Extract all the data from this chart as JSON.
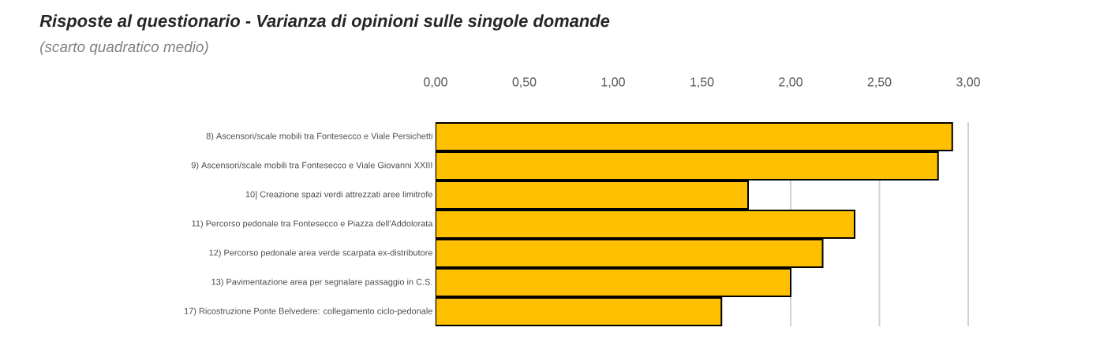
{
  "chart_data": {
    "type": "bar",
    "orientation": "horizontal",
    "title": "Risposte al questionario - Varianza di opinioni sulle singole domande",
    "subtitle": "(scarto quadratico medio)",
    "categories": [
      "8) Ascensori/scale mobili tra Fontesecco e Viale Persichetti",
      "9) Ascensori/scale mobili tra Fontesecco e Viale Giovanni XXIII",
      "10] Creazione spazi verdi attrezzati aree limitrofe",
      "11) Percorso pedonale tra Fontesecco e Piazza dell'Addolorata",
      "12) Percorso pedonale area verde scarpata ex-distributore",
      "13) Pavimentazione area per segnalare passaggio in C.S.",
      "17) Ricostruzione Ponte Belvedere: collegamento ciclo-pedonale"
    ],
    "values": [
      2.91,
      2.83,
      1.76,
      2.36,
      2.18,
      2.0,
      1.61
    ],
    "color": "#ffc000",
    "xlim": [
      0,
      3
    ],
    "xticks": [
      {
        "value": 0,
        "label": "0,00"
      },
      {
        "value": 0.5,
        "label": "0,50"
      },
      {
        "value": 1,
        "label": "1,00"
      },
      {
        "value": 1.5,
        "label": "1,50"
      },
      {
        "value": 2,
        "label": "2,00"
      },
      {
        "value": 2.5,
        "label": "2,50"
      },
      {
        "value": 3,
        "label": "3,00"
      }
    ],
    "grid": "x"
  }
}
